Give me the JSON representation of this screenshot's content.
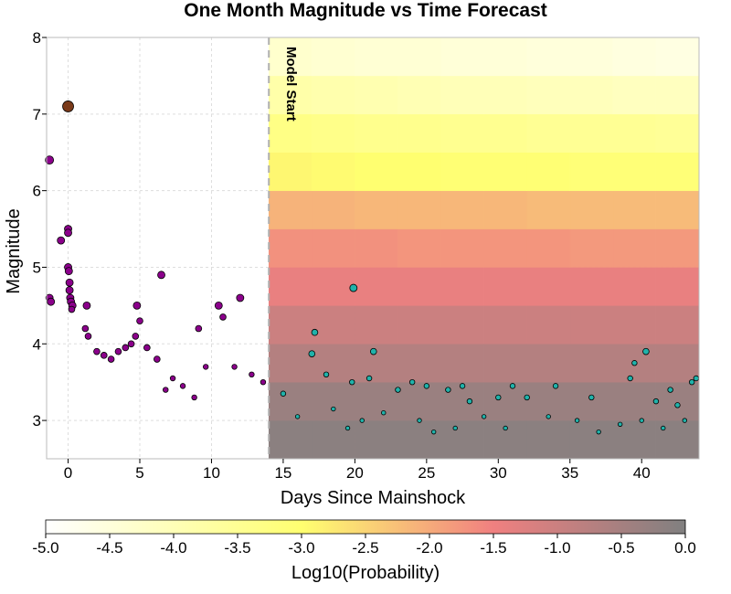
{
  "chart_data": {
    "type": "scatter",
    "title": "One Month Magnitude vs Time Forecast",
    "xlabel": "Days Since Mainshock",
    "ylabel": "Magnitude",
    "xlim": [
      -1.5,
      44
    ],
    "ylim": [
      2.5,
      8
    ],
    "xticks": [
      "0",
      "5",
      "10",
      "15",
      "20",
      "25",
      "30",
      "35",
      "40"
    ],
    "yticks": [
      "3",
      "4",
      "5",
      "6",
      "7",
      "8"
    ],
    "grid": true,
    "model_start": {
      "day": 14,
      "label": "Model Start"
    },
    "forecast_grid": {
      "day_edges": [
        14,
        17,
        20,
        23,
        26,
        29,
        32,
        35,
        38,
        41,
        44
      ],
      "magnitude_edges": [
        2.5,
        3.0,
        3.5,
        4.0,
        4.5,
        5.0,
        5.5,
        6.0,
        6.5,
        7.0,
        7.5,
        8.0
      ],
      "log10_probability_rows": [
        [
          -0.15,
          -0.15,
          -0.15,
          -0.15,
          -0.15,
          -0.15,
          -0.15,
          -0.15,
          -0.15,
          -0.15
        ],
        [
          -0.35,
          -0.35,
          -0.35,
          -0.35,
          -0.35,
          -0.35,
          -0.35,
          -0.35,
          -0.35,
          -0.35
        ],
        [
          -0.7,
          -0.7,
          -0.7,
          -0.7,
          -0.7,
          -0.7,
          -0.7,
          -0.7,
          -0.7,
          -0.7
        ],
        [
          -1.0,
          -1.0,
          -1.0,
          -1.0,
          -1.0,
          -1.0,
          -1.0,
          -1.0,
          -1.0,
          -1.0
        ],
        [
          -1.4,
          -1.4,
          -1.4,
          -1.4,
          -1.4,
          -1.4,
          -1.4,
          -1.4,
          -1.4,
          -1.4
        ],
        [
          -1.7,
          -1.7,
          -1.7,
          -1.75,
          -1.75,
          -1.75,
          -1.75,
          -1.8,
          -1.8,
          -1.8
        ],
        [
          -2.1,
          -2.1,
          -2.15,
          -2.15,
          -2.15,
          -2.15,
          -2.2,
          -2.2,
          -2.2,
          -2.2
        ],
        [
          -2.9,
          -2.95,
          -3.0,
          -3.0,
          -3.05,
          -3.05,
          -3.05,
          -3.1,
          -3.1,
          -3.1
        ],
        [
          -3.3,
          -3.35,
          -3.4,
          -3.4,
          -3.45,
          -3.45,
          -3.5,
          -3.5,
          -3.5,
          -3.55
        ],
        [
          -3.8,
          -3.85,
          -3.9,
          -3.95,
          -4.0,
          -4.0,
          -4.05,
          -4.05,
          -4.1,
          -4.1
        ],
        [
          -4.3,
          -4.35,
          -4.4,
          -4.4,
          -4.45,
          -4.45,
          -4.5,
          -4.5,
          -4.55,
          -4.6
        ]
      ]
    },
    "colorbar": {
      "label": "Log10(Probability)",
      "ticks": [
        "-5.0",
        "-4.5",
        "-4.0",
        "-3.5",
        "-3.0",
        "-2.5",
        "-2.0",
        "-1.5",
        "-1.0",
        "-0.5",
        "0.0"
      ],
      "range": [
        -5.0,
        0.0
      ],
      "color_stops": [
        {
          "value": -5.0,
          "color": "#ffffff"
        },
        {
          "value": -3.0,
          "color": "#ffff70"
        },
        {
          "value": -1.5,
          "color": "#f08080"
        },
        {
          "value": 0.0,
          "color": "#808080"
        }
      ]
    },
    "series": [
      {
        "name": "",
        "color": "#8b008b",
        "points": [
          [
            0.0,
            5.5
          ],
          [
            0.0,
            5.45
          ],
          [
            0.0,
            5.0
          ],
          [
            0.05,
            4.95
          ],
          [
            0.1,
            4.8
          ],
          [
            0.1,
            4.7
          ],
          [
            0.15,
            4.6
          ],
          [
            0.2,
            4.55
          ],
          [
            0.3,
            4.5
          ],
          [
            0.25,
            4.45
          ],
          [
            -0.5,
            5.35
          ],
          [
            -1.3,
            4.6
          ],
          [
            -1.2,
            4.55
          ],
          [
            6.5,
            4.9
          ],
          [
            12.0,
            4.6
          ],
          [
            10.5,
            4.5
          ],
          [
            10.8,
            4.35
          ],
          [
            9.1,
            4.2
          ],
          [
            4.8,
            4.5
          ],
          [
            5.0,
            4.3
          ],
          [
            4.7,
            4.1
          ],
          [
            1.3,
            4.5
          ],
          [
            1.2,
            4.2
          ],
          [
            1.4,
            4.1
          ],
          [
            2.0,
            3.9
          ],
          [
            2.5,
            3.85
          ],
          [
            3.0,
            3.8
          ],
          [
            3.5,
            3.9
          ],
          [
            4.0,
            3.95
          ],
          [
            4.4,
            4.0
          ],
          [
            5.5,
            3.95
          ],
          [
            6.2,
            3.8
          ],
          [
            7.3,
            3.55
          ],
          [
            8.0,
            3.45
          ],
          [
            9.6,
            3.7
          ],
          [
            11.6,
            3.7
          ],
          [
            12.8,
            3.6
          ],
          [
            13.6,
            3.5
          ],
          [
            6.8,
            3.4
          ],
          [
            8.8,
            3.3
          ]
        ]
      },
      {
        "name": "",
        "color": "#7a3a1a",
        "points": [
          [
            0.0,
            7.1
          ]
        ]
      },
      {
        "name": "",
        "color": "#8b008b",
        "points": [
          [
            -1.3,
            6.4
          ]
        ]
      },
      {
        "name": "",
        "color": "#20b2aa",
        "points": [
          [
            19.9,
            4.73
          ],
          [
            17.2,
            4.15
          ],
          [
            17.0,
            3.87
          ],
          [
            21.3,
            3.9
          ],
          [
            40.3,
            3.9
          ],
          [
            39.5,
            3.75
          ],
          [
            39.2,
            3.55
          ],
          [
            18.0,
            3.6
          ],
          [
            19.8,
            3.5
          ],
          [
            21.0,
            3.55
          ],
          [
            24.0,
            3.5
          ],
          [
            25.0,
            3.45
          ],
          [
            27.5,
            3.45
          ],
          [
            31.0,
            3.45
          ],
          [
            34.0,
            3.45
          ],
          [
            42.0,
            3.4
          ],
          [
            43.5,
            3.5
          ],
          [
            43.8,
            3.55
          ],
          [
            15.0,
            3.35
          ],
          [
            23.0,
            3.4
          ],
          [
            26.5,
            3.4
          ],
          [
            28.0,
            3.25
          ],
          [
            30.0,
            3.3
          ],
          [
            32.0,
            3.3
          ],
          [
            36.5,
            3.3
          ],
          [
            41.0,
            3.25
          ],
          [
            42.5,
            3.2
          ],
          [
            16.0,
            3.05
          ],
          [
            18.5,
            3.15
          ],
          [
            20.5,
            3.0
          ],
          [
            22.0,
            3.1
          ],
          [
            24.5,
            3.0
          ],
          [
            29.0,
            3.05
          ],
          [
            33.5,
            3.05
          ],
          [
            35.5,
            3.0
          ],
          [
            38.5,
            2.95
          ],
          [
            40.0,
            3.0
          ],
          [
            43.0,
            3.0
          ],
          [
            19.5,
            2.9
          ],
          [
            25.5,
            2.85
          ],
          [
            27.0,
            2.9
          ],
          [
            30.5,
            2.9
          ],
          [
            37.0,
            2.85
          ],
          [
            41.5,
            2.9
          ]
        ]
      }
    ]
  }
}
